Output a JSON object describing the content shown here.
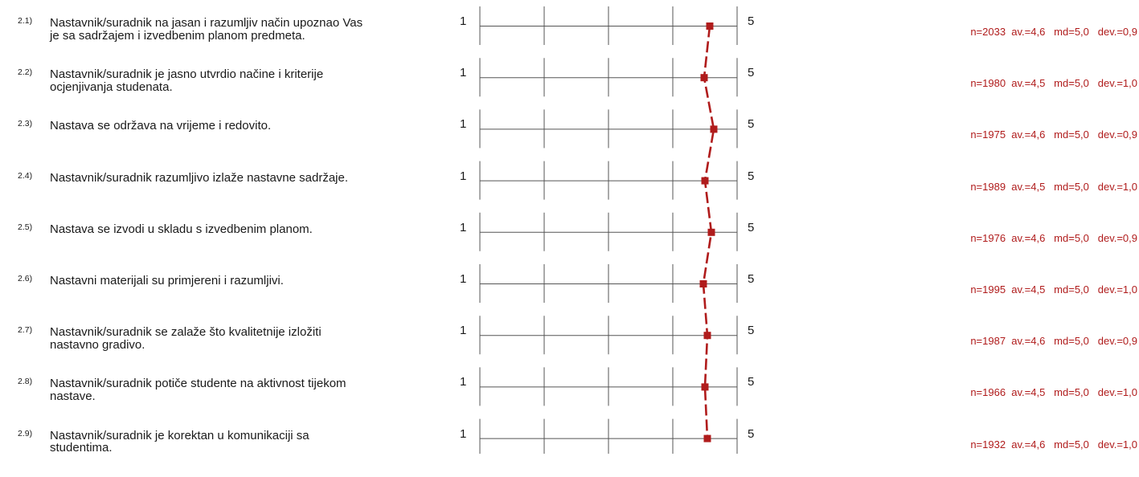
{
  "scale": {
    "low_label": "1",
    "high_label": "5"
  },
  "colors": {
    "mean_line": "#b01c1c",
    "marker": "#b01c1c",
    "scale_line": "#555555"
  },
  "chart_data": {
    "type": "line",
    "orientation": "vertical-profile",
    "xlim": [
      1,
      5
    ],
    "grid": true,
    "items": [
      {
        "number": "2.1)",
        "text": "Nastavnik/suradnik na jasan i razumljiv način upoznao Vas je sa sadržajem i izvedbenim planom predmeta.",
        "n": 2033,
        "av": 4.6,
        "md": 5.0,
        "dev": 0.9,
        "stats": "n=2033  av.=4,6   md=5,0   dev.=0,9"
      },
      {
        "number": "2.2)",
        "text": "Nastavnik/suradnik je jasno utvrdio načine i kriterije ocjenjivanja  studenata.",
        "n": 1980,
        "av": 4.5,
        "md": 5.0,
        "dev": 1.0,
        "stats": "n=1980  av.=4,5   md=5,0   dev.=1,0"
      },
      {
        "number": "2.3)",
        "text": "Nastava se održava na vrijeme i redovito.",
        "n": 1975,
        "av": 4.6,
        "md": 5.0,
        "dev": 0.9,
        "stats": "n=1975  av.=4,6   md=5,0   dev.=0,9"
      },
      {
        "number": "2.4)",
        "text": "Nastavnik/suradnik razumljivo izlaže nastavne sadržaje.",
        "n": 1989,
        "av": 4.5,
        "md": 5.0,
        "dev": 1.0,
        "stats": "n=1989  av.=4,5   md=5,0   dev.=1,0"
      },
      {
        "number": "2.5)",
        "text": "Nastava se izvodi u skladu s izvedbenim planom.",
        "n": 1976,
        "av": 4.6,
        "md": 5.0,
        "dev": 0.9,
        "stats": "n=1976  av.=4,6   md=5,0   dev.=0,9"
      },
      {
        "number": "2.6)",
        "text": "Nastavni materijali su primjereni i razumljivi.",
        "n": 1995,
        "av": 4.5,
        "md": 5.0,
        "dev": 1.0,
        "stats": "n=1995  av.=4,5   md=5,0   dev.=1,0"
      },
      {
        "number": "2.7)",
        "text": "Nastavnik/suradnik se zalaže što kvalitetnije izložiti nastavno gradivo.",
        "n": 1987,
        "av": 4.6,
        "md": 5.0,
        "dev": 0.9,
        "stats": "n=1987  av.=4,6   md=5,0   dev.=0,9"
      },
      {
        "number": "2.8)",
        "text": "Nastavnik/suradnik potiče studente na aktivnost tijekom nastave.",
        "n": 1966,
        "av": 4.5,
        "md": 5.0,
        "dev": 1.0,
        "stats": "n=1966  av.=4,5   md=5,0   dev.=1,0"
      },
      {
        "number": "2.9)",
        "text": "Nastavnik/suradnik je korektan u komunikaciji sa studentima.",
        "n": 1932,
        "av": 4.6,
        "md": 5.0,
        "dev": 1.0,
        "stats": "n=1932  av.=4,6   md=5,0   dev.=1,0"
      }
    ]
  }
}
